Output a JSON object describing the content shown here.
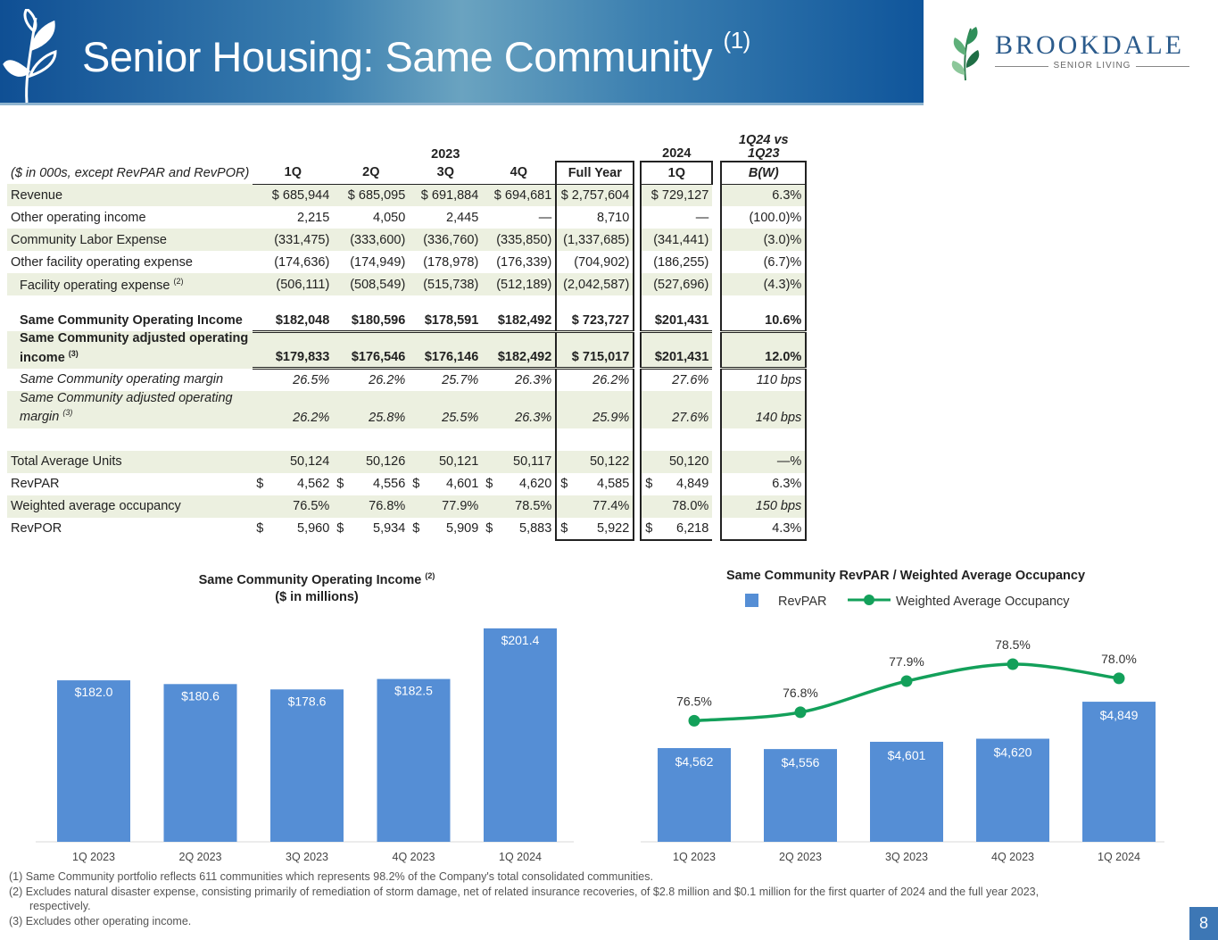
{
  "header": {
    "title": "Senior Housing: Same Community",
    "title_note": "(1)",
    "logo_text": "BROOKDALE",
    "logo_sub": "SENIOR LIVING"
  },
  "table": {
    "year_2023": "2023",
    "year_2024": "2024",
    "compare_header": "1Q24 vs 1Q23",
    "units_note": "($ in 000s, except RevPAR and RevPOR)",
    "columns": [
      "1Q",
      "2Q",
      "3Q",
      "4Q",
      "Full Year",
      "1Q",
      "B(W)"
    ],
    "rows": [
      {
        "label": "Revenue",
        "values": [
          "$ 685,944",
          "$ 685,095",
          "$ 691,884",
          "$ 694,681",
          "$ 2,757,604",
          "$ 729,127",
          "6.3%"
        ]
      },
      {
        "label": "Other operating income",
        "values": [
          "2,215",
          "4,050",
          "2,445",
          "—",
          "8,710",
          "—",
          "(100.0)%"
        ]
      },
      {
        "label": "Community Labor Expense",
        "values": [
          "(331,475)",
          "(333,600)",
          "(336,760)",
          "(335,850)",
          "(1,337,685)",
          "(341,441)",
          "(3.0)%"
        ]
      },
      {
        "label": "Other facility operating expense",
        "values": [
          "(174,636)",
          "(174,949)",
          "(178,978)",
          "(176,339)",
          "(704,902)",
          "(186,255)",
          "(6.7)%"
        ]
      },
      {
        "label": "Facility operating expense",
        "note": "(2)",
        "values": [
          "(506,111)",
          "(508,549)",
          "(515,738)",
          "(512,189)",
          "(2,042,587)",
          "(527,696)",
          "(4.3)%"
        ]
      },
      {
        "label": "Same Community Operating Income",
        "values": [
          "$182,048",
          "$180,596",
          "$178,591",
          "$182,492",
          "$  723,727",
          "$201,431",
          "10.6%"
        ]
      },
      {
        "label": "Same Community adjusted operating income",
        "note": "(3)",
        "values": [
          "$179,833",
          "$176,546",
          "$176,146",
          "$182,492",
          "$  715,017",
          "$201,431",
          "12.0%"
        ]
      },
      {
        "label": "Same Community operating margin",
        "values": [
          "26.5%",
          "26.2%",
          "25.7%",
          "26.3%",
          "26.2%",
          "27.6%",
          "110 bps"
        ]
      },
      {
        "label": "Same Community adjusted operating margin",
        "note": "(3)",
        "values": [
          "26.2%",
          "25.8%",
          "25.5%",
          "26.3%",
          "25.9%",
          "27.6%",
          "140 bps"
        ]
      },
      {
        "label": "Total Average Units",
        "values": [
          "50,124",
          "50,126",
          "50,121",
          "50,117",
          "50,122",
          "50,120",
          "—%"
        ]
      },
      {
        "label": "RevPAR",
        "values": [
          "4,562",
          "4,556",
          "4,601",
          "4,620",
          "4,585",
          "4,849",
          "6.3%"
        ]
      },
      {
        "label": "Weighted average occupancy",
        "values": [
          "76.5%",
          "76.8%",
          "77.9%",
          "78.5%",
          "77.4%",
          "78.0%",
          "150 bps"
        ]
      },
      {
        "label": "RevPOR",
        "values": [
          "5,960",
          "5,934",
          "5,909",
          "5,883",
          "5,922",
          "6,218",
          "4.3%"
        ]
      }
    ],
    "dollar": "$"
  },
  "chart_data": [
    {
      "type": "bar",
      "title": "Same Community Operating  Income",
      "title_note": "(2)",
      "subtitle": "($ in millions)",
      "categories": [
        "1Q 2023",
        "2Q 2023",
        "3Q 2023",
        "4Q 2023",
        "1Q 2024"
      ],
      "values": [
        182.0,
        180.6,
        178.6,
        182.5,
        201.4
      ],
      "data_labels": [
        "$182.0",
        "$180.6",
        "$178.6",
        "$182.5",
        "$201.4"
      ],
      "color": "#558ed5"
    },
    {
      "type": "bar+line",
      "title": "Same Community RevPAR / Weighted Average Occupancy",
      "categories": [
        "1Q 2023",
        "2Q 2023",
        "3Q 2023",
        "4Q 2023",
        "1Q 2024"
      ],
      "series": [
        {
          "name": "RevPAR",
          "type": "bar",
          "values": [
            4562,
            4556,
            4601,
            4620,
            4849
          ],
          "data_labels": [
            "$4,562",
            "$4,556",
            "$4,601",
            "$4,620",
            "$4,849"
          ],
          "color": "#558ed5"
        },
        {
          "name": "Weighted Average Occupancy",
          "type": "line",
          "values": [
            76.5,
            76.8,
            77.9,
            78.5,
            78.0
          ],
          "data_labels": [
            "76.5%",
            "76.8%",
            "77.9%",
            "78.5%",
            "78.0%"
          ],
          "color": "#13a05a"
        }
      ],
      "legend": "top"
    }
  ],
  "footnotes": [
    "(1) Same Community portfolio reflects 611 communities which represents 98.2% of the Company's total consolidated communities.",
    "(2) Excludes natural disaster expense, consisting primarily of remediation of storm damage, net of related insurance recoveries, of $2.8 million and $0.1 million for the first quarter of 2024 and the full year 2023,",
    "respectively.",
    "(3) Excludes other operating income."
  ],
  "page_number": "8"
}
